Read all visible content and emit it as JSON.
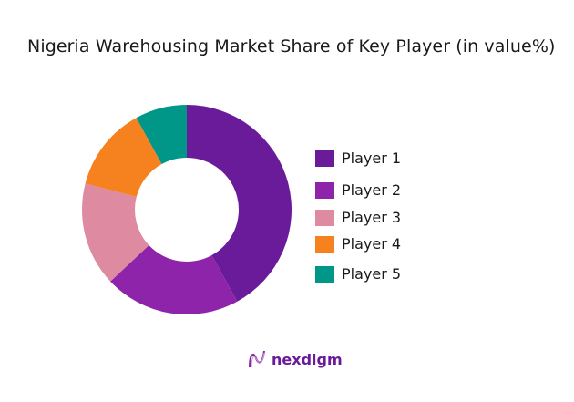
{
  "chart_data": {
    "type": "pie",
    "variant": "donut",
    "title": "Nigeria Warehousing Market Share of Key Player (in value%)",
    "categories": [
      "Player 1",
      "Player 2",
      "Player 3",
      "Player 4",
      "Player 5"
    ],
    "values": [
      42,
      21,
      16,
      13,
      8
    ],
    "colors": [
      "#6a1b9a",
      "#8e24aa",
      "#de8aa0",
      "#f5811f",
      "#009688"
    ],
    "start_angle": "top, clockwise",
    "legend_position": "right"
  },
  "title": "Nigeria Warehousing Market Share of Key Player (in value%)",
  "legend": [
    {
      "label": "Player 1",
      "color": "#6a1b9a"
    },
    {
      "label": "Player 2",
      "color": "#8e24aa"
    },
    {
      "label": "Player 3",
      "color": "#de8aa0"
    },
    {
      "label": "Player 4",
      "color": "#f5811f"
    },
    {
      "label": "Player 5",
      "color": "#009688"
    }
  ],
  "brand": {
    "name": "nexdigm",
    "icon": "nexdigm-logo-icon",
    "color": "#6a1b9a"
  }
}
